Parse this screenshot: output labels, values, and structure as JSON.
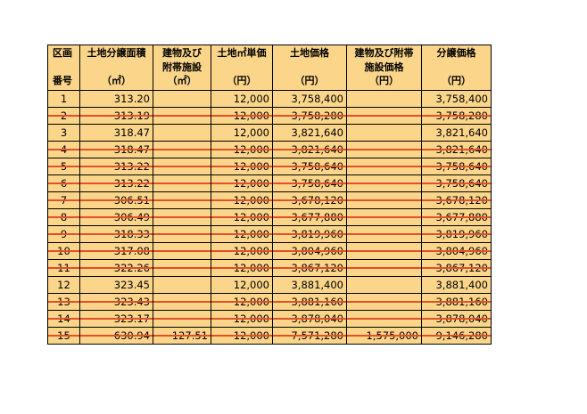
{
  "table": {
    "headers": {
      "no": {
        "line1": "区画",
        "line2": "番号"
      },
      "land_area": {
        "line1": "土地分譲面積",
        "line2": "（㎡）"
      },
      "building_area": {
        "line1": "建物及び",
        "line2": "附帯施設",
        "line3": "（㎡）"
      },
      "unit_price": {
        "line1": "土地㎡単価",
        "line2": "（円）"
      },
      "land_price": {
        "line1": "土地価格",
        "line2": "（円）"
      },
      "building_price": {
        "line1": "建物及び附帯",
        "line2": "施設価格",
        "line3": "（円）"
      },
      "sale_price": {
        "line1": "分譲価格",
        "line2": "（円）"
      }
    },
    "rows": [
      {
        "no": "1",
        "land_area": "313.20",
        "building_area": "",
        "unit_price": "12,000",
        "land_price": "3,758,400",
        "building_price": "",
        "sale_price": "3,758,400",
        "struck": false
      },
      {
        "no": "2",
        "land_area": "313.19",
        "building_area": "",
        "unit_price": "12,000",
        "land_price": "3,758,280",
        "building_price": "",
        "sale_price": "3,758,280",
        "struck": true
      },
      {
        "no": "3",
        "land_area": "318.47",
        "building_area": "",
        "unit_price": "12,000",
        "land_price": "3,821,640",
        "building_price": "",
        "sale_price": "3,821,640",
        "struck": false
      },
      {
        "no": "4",
        "land_area": "318.47",
        "building_area": "",
        "unit_price": "12,000",
        "land_price": "3,821,640",
        "building_price": "",
        "sale_price": "3,821,640",
        "struck": true
      },
      {
        "no": "5",
        "land_area": "313.22",
        "building_area": "",
        "unit_price": "12,000",
        "land_price": "3,758,640",
        "building_price": "",
        "sale_price": "3,758,640",
        "struck": true
      },
      {
        "no": "6",
        "land_area": "313.22",
        "building_area": "",
        "unit_price": "12,000",
        "land_price": "3,758,640",
        "building_price": "",
        "sale_price": "3,758,640",
        "struck": true
      },
      {
        "no": "7",
        "land_area": "306.51",
        "building_area": "",
        "unit_price": "12,000",
        "land_price": "3,678,120",
        "building_price": "",
        "sale_price": "3,678,120",
        "struck": true
      },
      {
        "no": "8",
        "land_area": "306.49",
        "building_area": "",
        "unit_price": "12,000",
        "land_price": "3,677,880",
        "building_price": "",
        "sale_price": "3,677,880",
        "struck": true
      },
      {
        "no": "9",
        "land_area": "318.33",
        "building_area": "",
        "unit_price": "12,000",
        "land_price": "3,819,960",
        "building_price": "",
        "sale_price": "3,819,960",
        "struck": true
      },
      {
        "no": "10",
        "land_area": "317.08",
        "building_area": "",
        "unit_price": "12,000",
        "land_price": "3,804,960",
        "building_price": "",
        "sale_price": "3,804,960",
        "struck": true
      },
      {
        "no": "11",
        "land_area": "322.26",
        "building_area": "",
        "unit_price": "12,000",
        "land_price": "3,867,120",
        "building_price": "",
        "sale_price": "3,867,120",
        "struck": true
      },
      {
        "no": "12",
        "land_area": "323.45",
        "building_area": "",
        "unit_price": "12,000",
        "land_price": "3,881,400",
        "building_price": "",
        "sale_price": "3,881,400",
        "struck": false
      },
      {
        "no": "13",
        "land_area": "323.43",
        "building_area": "",
        "unit_price": "12,000",
        "land_price": "3,881,160",
        "building_price": "",
        "sale_price": "3,881,160",
        "struck": true
      },
      {
        "no": "14",
        "land_area": "323.17",
        "building_area": "",
        "unit_price": "12,000",
        "land_price": "3,878,040",
        "building_price": "",
        "sale_price": "3,878,040",
        "struck": true
      },
      {
        "no": "15",
        "land_area": "630.94",
        "building_area": "127.51",
        "unit_price": "12,000",
        "land_price": "7,571,280",
        "building_price": "1,575,000",
        "sale_price": "9,146,280",
        "struck": true
      }
    ],
    "strike_color": "#e0502a",
    "cell_color": "#fbd68a"
  }
}
